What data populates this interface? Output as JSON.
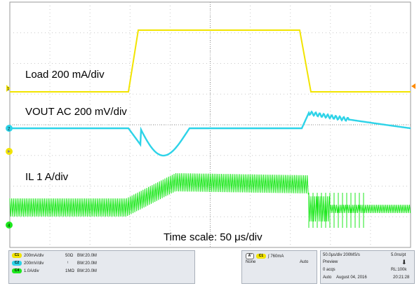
{
  "annotations": {
    "load": "Load 200 mA/div",
    "vout": "VOUT AC 200 mV/div",
    "il": "IL 1 A/div",
    "time_scale": "Time scale: 50 μs/div"
  },
  "channel_markers": {
    "c1": "1",
    "c2": "2",
    "c4": "4"
  },
  "colors": {
    "grid_border": "#9a9a9a",
    "grid_dots": "#c8c8c8",
    "ch1": "#f2e400",
    "ch2": "#2dd3e8",
    "ch4": "#1ee81e",
    "trigger_marker": "#ff8a00"
  },
  "status_bar": {
    "channels": [
      {
        "badge": "C1",
        "scale": "200mA/div",
        "coupling": "50Ω",
        "bw": "BW:20.0M",
        "color": "#f2e400"
      },
      {
        "badge": "C2",
        "scale": "200mV/div",
        "coupling": "ᵗ",
        "bw": "BW:20.0M",
        "color": "#2dd3e8"
      },
      {
        "badge": "C4",
        "scale": "1.0A/div",
        "coupling": "1MΩ",
        "bw": "BW:20.0M",
        "color": "#1ee81e"
      }
    ],
    "trigger": {
      "badge_a": "A'",
      "badge_ch": "C1",
      "slope": "∫",
      "level": "760mA",
      "source": "None",
      "mode": "Auto"
    },
    "acquisition": {
      "horizontal": "50.0μs/div",
      "sample_rate": "200MS/s",
      "resolution": "5.0ns/pt",
      "state": "Preview",
      "acqs": "0 acqs",
      "record_length": "RL:100k",
      "mode": "Auto",
      "date": "August 04, 2016",
      "time": "20:21:28"
    }
  }
}
